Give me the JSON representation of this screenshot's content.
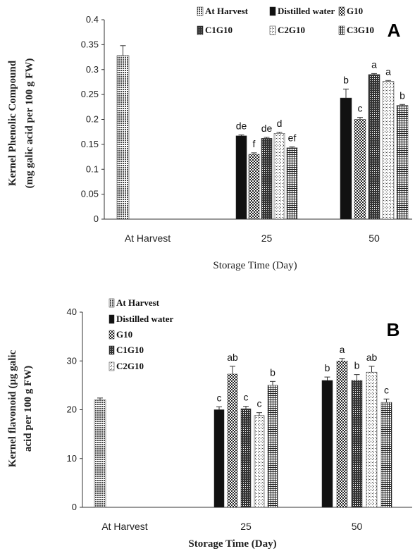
{
  "chart_data": [
    {
      "type": "bar",
      "panel_label": "A",
      "ylabel_lines": [
        "Kernel Phenolic Compound",
        "(mg galic acid per 100 g FW)"
      ],
      "xlabel": "Storage Time (Day)",
      "categories": [
        "At Harvest",
        "25",
        "50"
      ],
      "ylim": [
        0,
        0.4
      ],
      "yticks": [
        "0",
        "0.05",
        "0.1",
        "0.15",
        "0.2",
        "0.25",
        "0.3",
        "0.35",
        "0.4"
      ],
      "legend_position": "top",
      "series": [
        {
          "name": "At Harvest",
          "values": [
            0.328,
            null,
            null
          ],
          "errors": [
            0.02,
            null,
            null
          ],
          "labels": [
            "",
            "",
            ""
          ],
          "pattern": "pat-harvest"
        },
        {
          "name": "Distilled water",
          "values": [
            null,
            0.167,
            0.243
          ],
          "errors": [
            null,
            0.002,
            0.018
          ],
          "labels": [
            "",
            "de",
            "b"
          ],
          "pattern": "pat-black"
        },
        {
          "name": "G10",
          "values": [
            null,
            0.13,
            0.2
          ],
          "errors": [
            null,
            0.003,
            0.004
          ],
          "labels": [
            "",
            "f",
            "c"
          ],
          "pattern": "pat-check"
        },
        {
          "name": "C1G10",
          "values": [
            null,
            0.162,
            0.29
          ],
          "errors": [
            null,
            0.002,
            0.002
          ],
          "labels": [
            "",
            "de",
            "a"
          ],
          "pattern": "pat-dense"
        },
        {
          "name": "C2G10",
          "values": [
            null,
            0.172,
            0.276
          ],
          "errors": [
            null,
            0.002,
            0.002
          ],
          "labels": [
            "",
            "d",
            "a"
          ],
          "pattern": "pat-light"
        },
        {
          "name": "C3G10",
          "values": [
            null,
            0.143,
            0.228
          ],
          "errors": [
            null,
            0.002,
            0.002
          ],
          "labels": [
            "",
            "ef",
            "b"
          ],
          "pattern": "pat-cross"
        }
      ]
    },
    {
      "type": "bar",
      "panel_label": "B",
      "ylabel_lines": [
        "Kernel flavonoid (μg galic",
        "acid per 100 g FW)"
      ],
      "xlabel": "Storage Time (Day)",
      "categories": [
        "At Harvest",
        "25",
        "50"
      ],
      "ylim": [
        0,
        40
      ],
      "yticks": [
        "0",
        "10",
        "20",
        "30",
        "40"
      ],
      "legend_position": "top-left",
      "series": [
        {
          "name": "At Harvest",
          "values": [
            22,
            null,
            null
          ],
          "errors": [
            0.4,
            null,
            null
          ],
          "labels": [
            "",
            "",
            ""
          ],
          "pattern": "pat-harvest"
        },
        {
          "name": "Distilled water",
          "values": [
            null,
            20,
            26
          ],
          "errors": [
            null,
            0.6,
            0.7
          ],
          "labels": [
            "",
            "c",
            "b"
          ],
          "pattern": "pat-black"
        },
        {
          "name": "G10",
          "values": [
            null,
            27.3,
            30
          ],
          "errors": [
            null,
            1.6,
            0.5
          ],
          "labels": [
            "",
            "ab",
            "a"
          ],
          "pattern": "pat-check"
        },
        {
          "name": "C1G10",
          "values": [
            null,
            20.2,
            26
          ],
          "errors": [
            null,
            0.5,
            1.2
          ],
          "labels": [
            "",
            "c",
            "b"
          ],
          "pattern": "pat-dense"
        },
        {
          "name": "C2G10",
          "values": [
            null,
            18.8,
            27.7
          ],
          "errors": [
            null,
            0.6,
            1.2
          ],
          "labels": [
            "",
            "c",
            "ab"
          ],
          "pattern": "pat-light"
        },
        {
          "name": "",
          "values": [
            null,
            25,
            21.5
          ],
          "errors": [
            null,
            0.8,
            0.7
          ],
          "labels": [
            "",
            "b",
            "c"
          ],
          "pattern": "pat-cross"
        }
      ]
    }
  ]
}
